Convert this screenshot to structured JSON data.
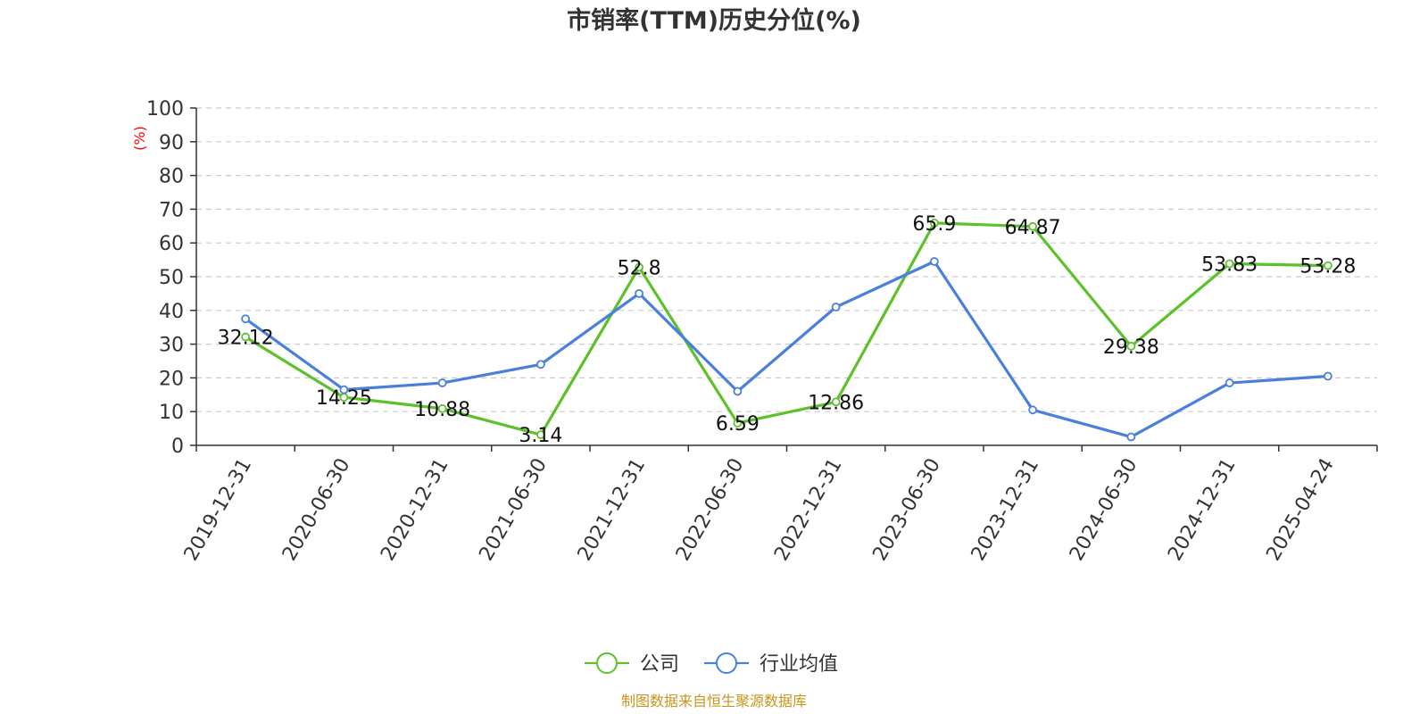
{
  "chart_data": {
    "type": "line",
    "title": "市销率(TTM)历史分位(%)",
    "y_unit_label": "(%)",
    "categories": [
      "2019-12-31",
      "2020-06-30",
      "2020-12-31",
      "2021-06-30",
      "2021-12-31",
      "2022-06-30",
      "2022-12-31",
      "2023-06-30",
      "2023-12-31",
      "2024-06-30",
      "2024-12-31",
      "2025-04-24"
    ],
    "ylim": [
      0,
      100
    ],
    "yticks": [
      0,
      10,
      20,
      30,
      40,
      50,
      60,
      70,
      80,
      90,
      100
    ],
    "grid": true,
    "legend_position": "bottom-center",
    "series": [
      {
        "name": "公司",
        "color": "#5cc12a",
        "values": [
          32.12,
          14.25,
          10.88,
          3.14,
          52.8,
          6.59,
          12.86,
          65.9,
          64.87,
          29.38,
          53.83,
          53.28
        ],
        "labels": [
          "32.12",
          "14.25",
          "10.88",
          "3.14",
          "52.8",
          "6.59",
          "12.86",
          "65.9",
          "64.87",
          "29.38",
          "53.83",
          "53.28"
        ],
        "show_labels": true
      },
      {
        "name": "行业均值",
        "color": "#4a7fdc",
        "values": [
          37.5,
          16.5,
          18.5,
          24.0,
          45.0,
          16.0,
          41.0,
          54.5,
          10.5,
          2.5,
          18.5,
          20.5
        ],
        "show_labels": false
      }
    ],
    "source": "制图数据来自恒生聚源数据库"
  }
}
